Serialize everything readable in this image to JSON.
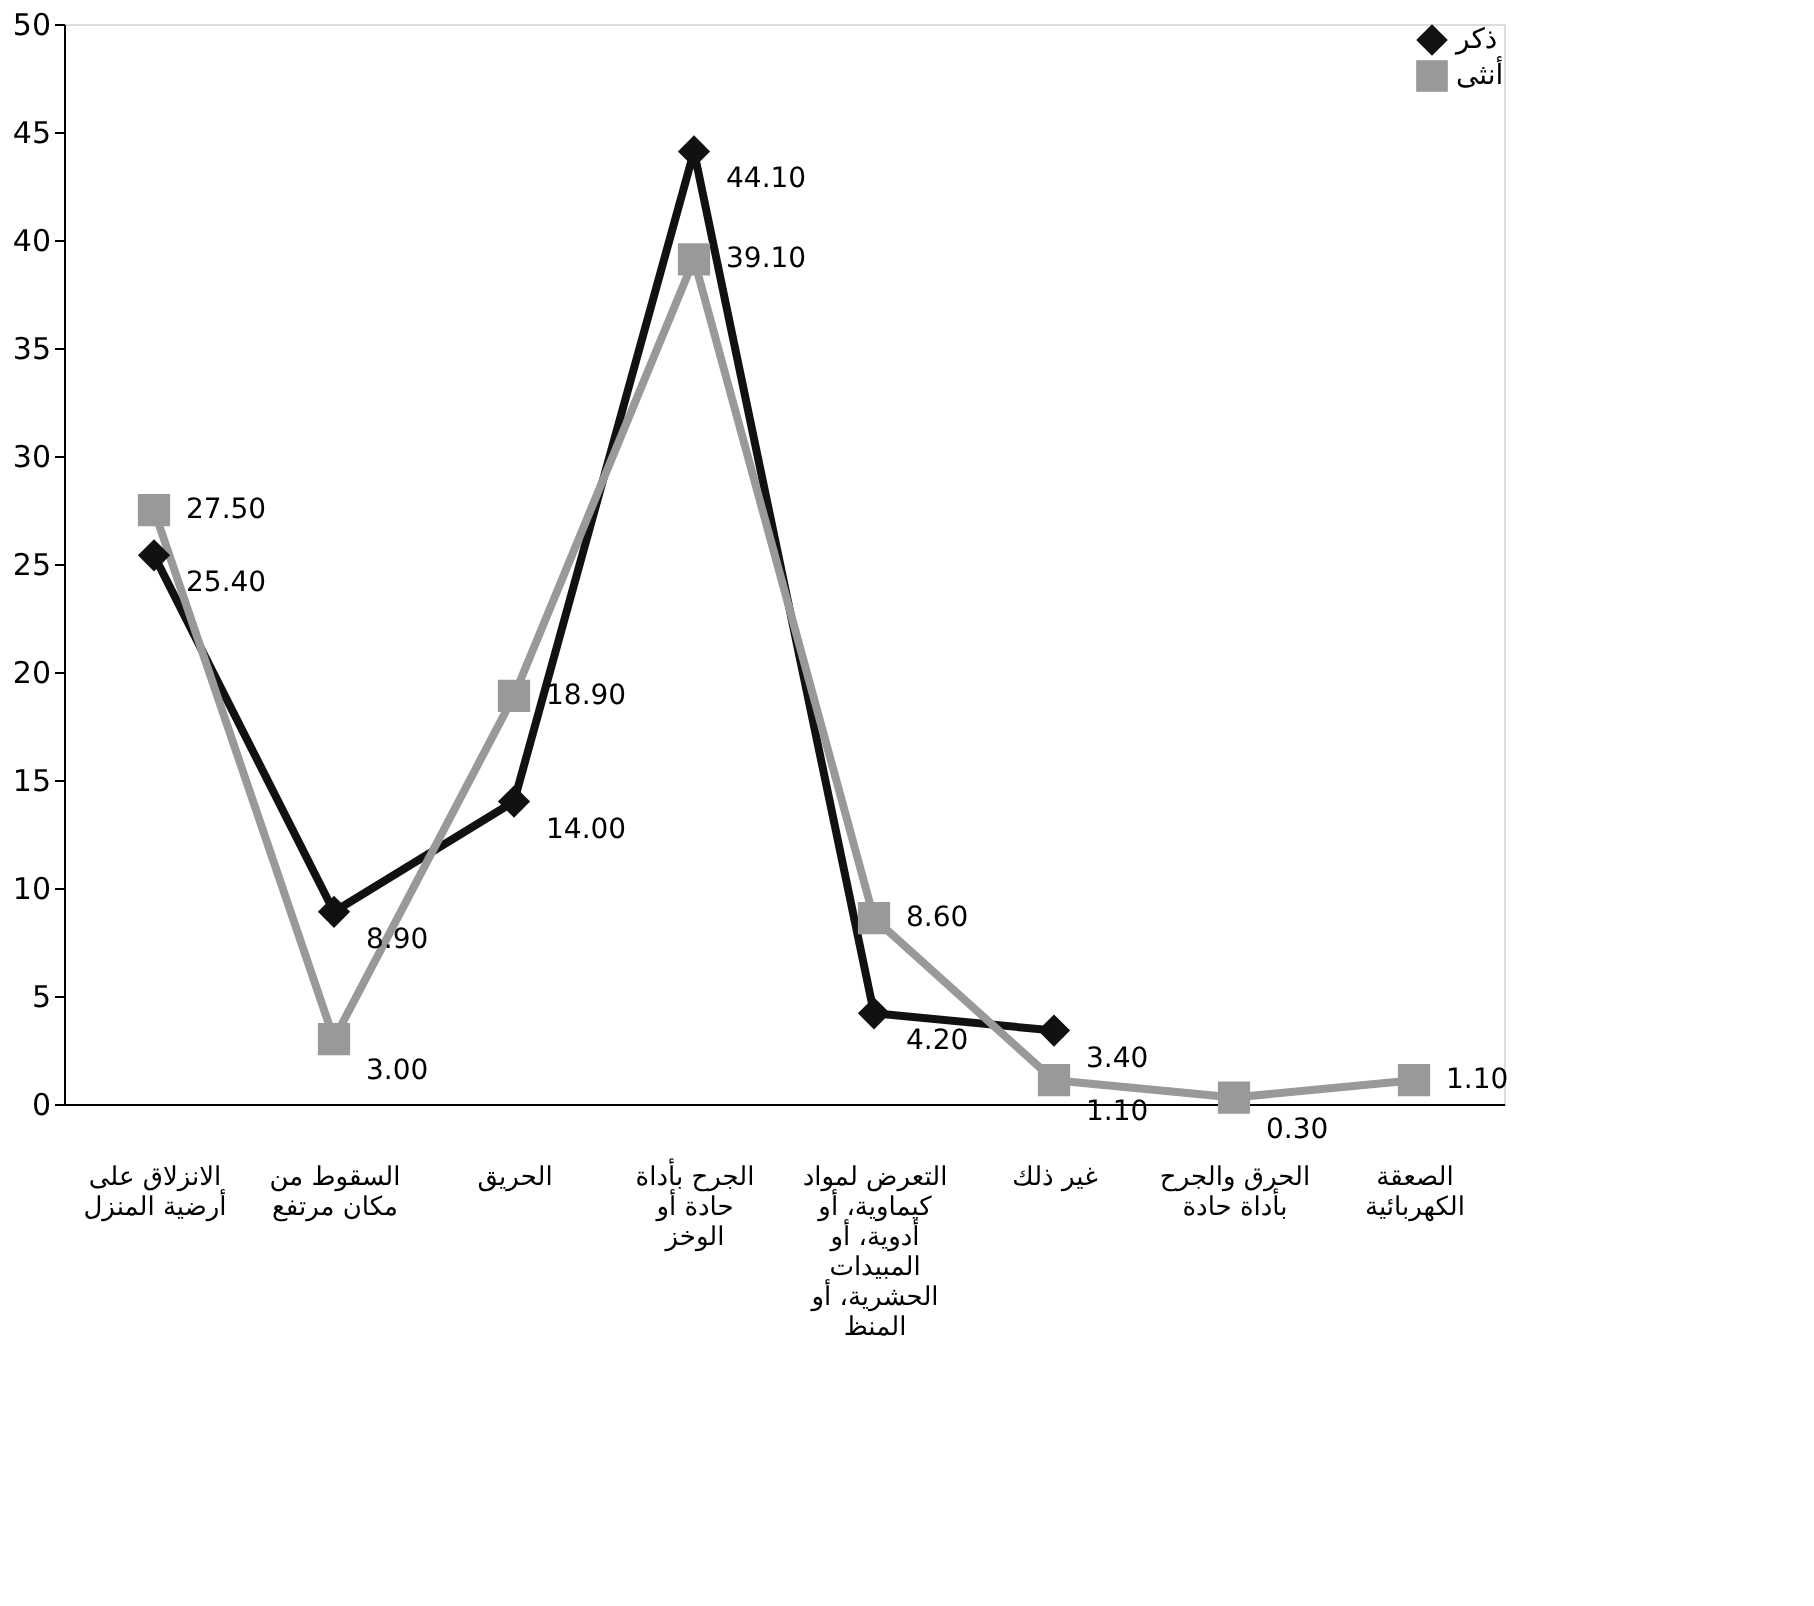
{
  "chart_data": {
    "type": "line",
    "categories": [
      "الانزلاق على\nأرضية المنزل",
      "السقوط من\nمكان مرتفع",
      "الحريق",
      "الجرح بأداة\nحادة أو\nالوخز",
      "التعرض لمواد\nكيماوية، أو\nأدوية، أو\nالمبيدات\nالحشرية، أو\nالمنظ",
      "غير ذلك",
      "الحرق والجرح\nبأداة حادة",
      "الصعقة\nالكهربائية"
    ],
    "series": [
      {
        "name": "ذكر",
        "color": "#111111",
        "marker": "diamond",
        "values": [
          25.4,
          8.9,
          14.0,
          44.1,
          4.2,
          3.4,
          null,
          null
        ],
        "value_labels": [
          "25.40",
          "8.90",
          "14.00",
          "44.10",
          "4.20",
          "3.40",
          null,
          null
        ]
      },
      {
        "name": "أنثى",
        "color": "#999999",
        "marker": "square",
        "values": [
          27.5,
          3.0,
          18.9,
          39.1,
          8.6,
          1.1,
          0.3,
          1.1
        ],
        "value_labels": [
          "27.50",
          "3.00",
          "18.90",
          "39.10",
          "8.60",
          "1.10",
          "0.30",
          "1.10"
        ]
      }
    ],
    "ylim": [
      0,
      50
    ],
    "yticks": [
      0,
      5,
      10,
      15,
      20,
      25,
      30,
      35,
      40,
      45,
      50
    ],
    "grid": false,
    "legend": "top right",
    "line_style": "solid"
  }
}
